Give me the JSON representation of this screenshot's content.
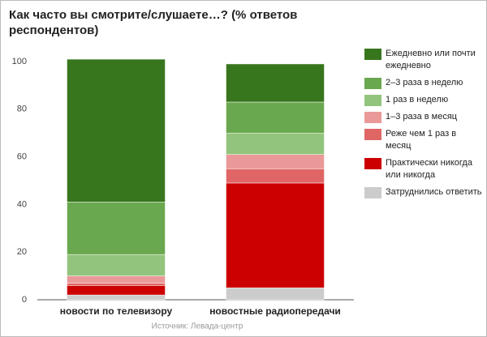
{
  "chart_data": {
    "type": "stacked_bar",
    "title": "Как часто вы смотрите/слушаете…? (% ответов респондентов)",
    "source": "Источник: Левада-центр",
    "categories": [
      "новости по телевизору",
      "новостные радиопередачи"
    ],
    "series": [
      {
        "name": "Затруднились ответить",
        "color": "#cccccc",
        "values": [
          2,
          5
        ]
      },
      {
        "name": "Практически никогда или никогда",
        "color": "#cc0000",
        "values": [
          4,
          44
        ]
      },
      {
        "name": "Реже чем 1 раз в месяц",
        "color": "#e06666",
        "values": [
          1,
          6
        ]
      },
      {
        "name": "1–3 раза в месяц",
        "color": "#ea9999",
        "values": [
          3,
          6
        ]
      },
      {
        "name": "1 раз в неделю",
        "color": "#93c47d",
        "values": [
          9,
          9
        ]
      },
      {
        "name": "2–3 раза в неделю",
        "color": "#6aa84f",
        "values": [
          22,
          13
        ]
      },
      {
        "name": "Ежедневно или почти ежедневно",
        "color": "#38761d",
        "values": [
          60,
          16
        ]
      }
    ],
    "ylim": [
      0,
      100
    ],
    "yticks": [
      0,
      20,
      40,
      60,
      80,
      100
    ],
    "grid": false
  }
}
